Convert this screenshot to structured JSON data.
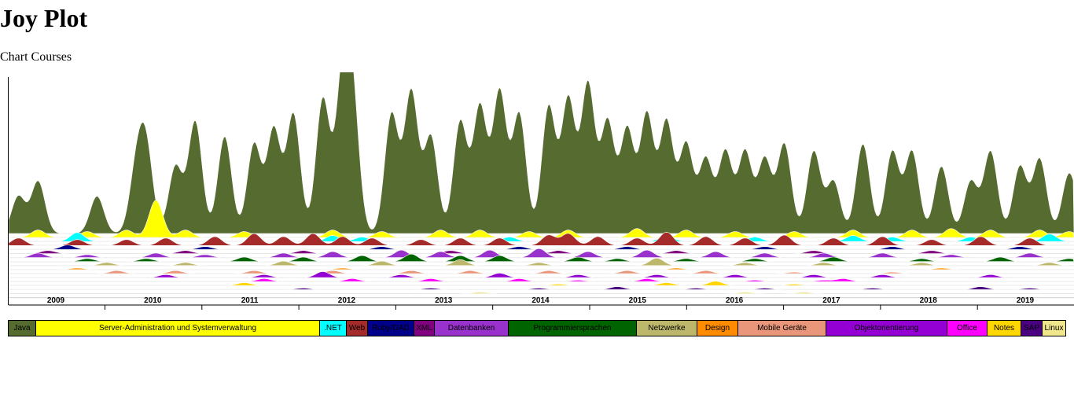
{
  "page": {
    "title": "Joy Plot",
    "subtitle": "Chart Courses"
  },
  "chart_data": {
    "type": "area",
    "subtype": "joy-plot (ridgeline)",
    "x_ticks": [
      "2009",
      "2010",
      "2011",
      "2012",
      "2013",
      "2014",
      "2015",
      "2016",
      "2017",
      "2018",
      "2019"
    ],
    "xlim": [
      "2008-07",
      "2019-12"
    ],
    "grid": true,
    "legend_placement": "bottom",
    "series": [
      {
        "name": "Java",
        "color": "#556b2f",
        "peaks": [
          [
            2008.7,
            0.25
          ],
          [
            2008.9,
            0.35
          ],
          [
            2009.5,
            0.25
          ],
          [
            2009.9,
            0.4
          ],
          [
            2010.0,
            0.55
          ],
          [
            2010.3,
            0.45
          ],
          [
            2010.5,
            0.75
          ],
          [
            2010.8,
            0.65
          ],
          [
            2011.1,
            0.6
          ],
          [
            2011.3,
            0.7
          ],
          [
            2011.5,
            0.8
          ],
          [
            2011.8,
            0.9
          ],
          [
            2012.0,
            0.95
          ],
          [
            2012.1,
            0.85
          ],
          [
            2012.5,
            0.8
          ],
          [
            2012.7,
            0.95
          ],
          [
            2012.9,
            0.65
          ],
          [
            2013.2,
            0.75
          ],
          [
            2013.4,
            0.85
          ],
          [
            2013.6,
            0.95
          ],
          [
            2013.8,
            0.8
          ],
          [
            2014.1,
            0.85
          ],
          [
            2014.3,
            0.9
          ],
          [
            2014.5,
            1.0
          ],
          [
            2014.7,
            0.75
          ],
          [
            2014.9,
            0.7
          ],
          [
            2015.1,
            0.8
          ],
          [
            2015.3,
            0.75
          ],
          [
            2015.5,
            0.6
          ],
          [
            2015.7,
            0.5
          ],
          [
            2015.9,
            0.55
          ],
          [
            2016.1,
            0.55
          ],
          [
            2016.3,
            0.5
          ],
          [
            2016.5,
            0.6
          ],
          [
            2016.8,
            0.55
          ],
          [
            2017.0,
            0.35
          ],
          [
            2017.3,
            0.6
          ],
          [
            2017.6,
            0.55
          ],
          [
            2017.8,
            0.55
          ],
          [
            2018.1,
            0.45
          ],
          [
            2018.4,
            0.35
          ],
          [
            2018.6,
            0.55
          ],
          [
            2018.9,
            0.45
          ],
          [
            2019.1,
            0.5
          ],
          [
            2019.4,
            0.4
          ],
          [
            2019.6,
            0.3
          ]
        ]
      },
      {
        "name": "Server-Administration und Systemverwaltung",
        "color": "#ffff00",
        "peaks": [
          [
            2008.9,
            0.05
          ],
          [
            2009.4,
            0.04
          ],
          [
            2009.8,
            0.05
          ],
          [
            2010.1,
            0.25
          ],
          [
            2010.4,
            0.05
          ],
          [
            2011.0,
            0.04
          ],
          [
            2011.9,
            0.05
          ],
          [
            2012.4,
            0.04
          ],
          [
            2013.0,
            0.05
          ],
          [
            2013.4,
            0.05
          ],
          [
            2013.9,
            0.04
          ],
          [
            2014.3,
            0.05
          ],
          [
            2015.0,
            0.06
          ],
          [
            2015.5,
            0.05
          ],
          [
            2016.0,
            0.04
          ],
          [
            2016.6,
            0.04
          ],
          [
            2017.2,
            0.05
          ],
          [
            2017.8,
            0.05
          ],
          [
            2018.2,
            0.06
          ],
          [
            2018.6,
            0.05
          ],
          [
            2019.1,
            0.05
          ],
          [
            2019.4,
            0.04
          ]
        ]
      },
      {
        "name": ".NET",
        "color": "#00ffff",
        "peaks": [
          [
            2009.3,
            0.06
          ],
          [
            2011.9,
            0.04
          ],
          [
            2012.2,
            0.03
          ],
          [
            2013.7,
            0.03
          ],
          [
            2015.3,
            0.04
          ],
          [
            2016.2,
            0.03
          ],
          [
            2017.2,
            0.04
          ],
          [
            2017.6,
            0.03
          ],
          [
            2018.4,
            0.03
          ],
          [
            2019.2,
            0.05
          ]
        ]
      },
      {
        "name": "Web",
        "color": "#a52a2a",
        "peaks": [
          [
            2008.7,
            0.05
          ],
          [
            2009.3,
            0.04
          ],
          [
            2009.8,
            0.04
          ],
          [
            2010.2,
            0.05
          ],
          [
            2010.7,
            0.06
          ],
          [
            2011.1,
            0.08
          ],
          [
            2011.4,
            0.06
          ],
          [
            2011.7,
            0.08
          ],
          [
            2012.0,
            0.06
          ],
          [
            2012.3,
            0.05
          ],
          [
            2012.8,
            0.04
          ],
          [
            2013.2,
            0.05
          ],
          [
            2013.6,
            0.05
          ],
          [
            2014.1,
            0.07
          ],
          [
            2014.3,
            0.08
          ],
          [
            2014.6,
            0.06
          ],
          [
            2015.0,
            0.05
          ],
          [
            2015.3,
            0.09
          ],
          [
            2015.7,
            0.06
          ],
          [
            2016.1,
            0.05
          ],
          [
            2016.5,
            0.07
          ],
          [
            2017.0,
            0.05
          ],
          [
            2017.5,
            0.06
          ],
          [
            2018.0,
            0.04
          ],
          [
            2018.5,
            0.06
          ],
          [
            2019.0,
            0.05
          ]
        ]
      },
      {
        "name": "Ruby/OAD",
        "color": "#00008b",
        "peaks": [
          [
            2009.2,
            0.03
          ],
          [
            2010.6,
            0.02
          ],
          [
            2012.4,
            0.02
          ],
          [
            2013.8,
            0.02
          ],
          [
            2014.9,
            0.02
          ],
          [
            2016.3,
            0.02
          ],
          [
            2017.6,
            0.02
          ],
          [
            2018.9,
            0.02
          ]
        ]
      },
      {
        "name": "XML",
        "color": "#800080",
        "peaks": [
          [
            2009.0,
            0.02
          ],
          [
            2010.4,
            0.02
          ],
          [
            2011.6,
            0.02
          ],
          [
            2013.1,
            0.02
          ],
          [
            2014.2,
            0.02
          ],
          [
            2015.4,
            0.02
          ],
          [
            2016.8,
            0.02
          ],
          [
            2018.0,
            0.02
          ]
        ]
      },
      {
        "name": "Datenbanken",
        "color": "#9932cc",
        "peaks": [
          [
            2008.9,
            0.03
          ],
          [
            2009.4,
            0.02
          ],
          [
            2010.1,
            0.03
          ],
          [
            2010.6,
            0.02
          ],
          [
            2011.4,
            0.03
          ],
          [
            2011.9,
            0.04
          ],
          [
            2012.6,
            0.05
          ],
          [
            2013.0,
            0.04
          ],
          [
            2013.5,
            0.05
          ],
          [
            2014.0,
            0.06
          ],
          [
            2014.5,
            0.04
          ],
          [
            2015.1,
            0.05
          ],
          [
            2015.8,
            0.04
          ],
          [
            2016.3,
            0.03
          ],
          [
            2016.9,
            0.03
          ],
          [
            2017.5,
            0.03
          ],
          [
            2018.2,
            0.02
          ],
          [
            2019.0,
            0.03
          ]
        ]
      },
      {
        "name": "Programmiersprachen",
        "color": "#006400",
        "peaks": [
          [
            2009.4,
            0.02
          ],
          [
            2010.0,
            0.02
          ],
          [
            2011.0,
            0.03
          ],
          [
            2011.6,
            0.03
          ],
          [
            2012.2,
            0.04
          ],
          [
            2012.7,
            0.05
          ],
          [
            2013.2,
            0.04
          ],
          [
            2013.6,
            0.04
          ],
          [
            2014.4,
            0.03
          ],
          [
            2014.8,
            0.02
          ],
          [
            2015.5,
            0.02
          ],
          [
            2016.2,
            0.02
          ],
          [
            2017.0,
            0.03
          ],
          [
            2017.9,
            0.02
          ],
          [
            2018.7,
            0.03
          ],
          [
            2019.4,
            0.02
          ]
        ]
      },
      {
        "name": "Netzwerke",
        "color": "#bdb76b",
        "peaks": [
          [
            2009.6,
            0.02
          ],
          [
            2010.4,
            0.02
          ],
          [
            2011.4,
            0.03
          ],
          [
            2012.4,
            0.03
          ],
          [
            2013.2,
            0.04
          ],
          [
            2014.0,
            0.02
          ],
          [
            2015.2,
            0.05
          ],
          [
            2016.1,
            0.02
          ],
          [
            2016.9,
            0.02
          ],
          [
            2017.9,
            0.02
          ],
          [
            2019.2,
            0.02
          ]
        ]
      },
      {
        "name": "Design",
        "color": "#ff8c00",
        "peaks": [
          [
            2009.3,
            0.01
          ],
          [
            2012.0,
            0.01
          ],
          [
            2015.4,
            0.01
          ],
          [
            2018.1,
            0.01
          ]
        ]
      },
      {
        "name": "Mobile Geräte",
        "color": "#e9967a",
        "peaks": [
          [
            2009.7,
            0.02
          ],
          [
            2010.3,
            0.02
          ],
          [
            2011.1,
            0.02
          ],
          [
            2011.9,
            0.02
          ],
          [
            2012.7,
            0.02
          ],
          [
            2013.3,
            0.02
          ],
          [
            2014.1,
            0.02
          ],
          [
            2014.9,
            0.02
          ],
          [
            2015.7,
            0.02
          ],
          [
            2016.6,
            0.01
          ],
          [
            2017.6,
            0.01
          ]
        ]
      },
      {
        "name": "Objektorientierung",
        "color": "#9400d3",
        "peaks": [
          [
            2010.2,
            0.02
          ],
          [
            2011.2,
            0.02
          ],
          [
            2011.8,
            0.04
          ],
          [
            2012.6,
            0.02
          ],
          [
            2013.6,
            0.03
          ],
          [
            2014.4,
            0.02
          ],
          [
            2015.2,
            0.02
          ],
          [
            2016.0,
            0.02
          ],
          [
            2016.8,
            0.02
          ],
          [
            2017.5,
            0.02
          ],
          [
            2018.6,
            0.02
          ]
        ]
      },
      {
        "name": "Office",
        "color": "#ff00ff",
        "peaks": [
          [
            2011.2,
            0.02
          ],
          [
            2012.1,
            0.02
          ],
          [
            2012.9,
            0.02
          ],
          [
            2013.8,
            0.02
          ],
          [
            2014.4,
            0.01
          ],
          [
            2015.1,
            0.02
          ],
          [
            2016.2,
            0.01
          ],
          [
            2016.9,
            0.01
          ],
          [
            2017.1,
            0.02
          ]
        ]
      },
      {
        "name": "Notes",
        "color": "#ffd700",
        "peaks": [
          [
            2011.0,
            0.02
          ],
          [
            2014.2,
            0.01
          ],
          [
            2015.3,
            0.02
          ],
          [
            2015.8,
            0.03
          ],
          [
            2016.6,
            0.01
          ]
        ]
      },
      {
        "name": "SAP",
        "color": "#4b0082",
        "peaks": [
          [
            2011.6,
            0.01
          ],
          [
            2012.9,
            0.01
          ],
          [
            2014.0,
            0.01
          ],
          [
            2014.8,
            0.02
          ],
          [
            2015.6,
            0.01
          ],
          [
            2016.3,
            0.01
          ],
          [
            2017.4,
            0.01
          ],
          [
            2018.5,
            0.02
          ],
          [
            2019.0,
            0.01
          ]
        ]
      },
      {
        "name": "Linux",
        "color": "#f0e68c",
        "peaks": [
          [
            2013.4,
            0.01
          ],
          [
            2016.1,
            0.01
          ],
          [
            2016.7,
            0.01
          ]
        ]
      }
    ]
  },
  "legend": {
    "items": [
      {
        "label": "Java",
        "color": "#556b2f"
      },
      {
        "label": "Server-Administration und Systemverwaltung",
        "color": "#ffff00"
      },
      {
        "label": ".NET",
        "color": "#00ffff"
      },
      {
        "label": "Web",
        "color": "#a52a2a"
      },
      {
        "label": "Ruby/OAD",
        "color": "#00008b"
      },
      {
        "label": "XML",
        "color": "#800080"
      },
      {
        "label": "Datenbanken",
        "color": "#9932cc"
      },
      {
        "label": "Programmiersprachen",
        "color": "#006400"
      },
      {
        "label": "Netzwerke",
        "color": "#bdb76b"
      },
      {
        "label": "Design",
        "color": "#ff8c00"
      },
      {
        "label": "Mobile Geräte",
        "color": "#e9967a"
      },
      {
        "label": "Objektorientierung",
        "color": "#9400d3"
      },
      {
        "label": "Office",
        "color": "#ff00ff"
      },
      {
        "label": "Notes",
        "color": "#ffd700"
      },
      {
        "label": "SAP",
        "color": "#4b0082"
      },
      {
        "label": "Linux",
        "color": "#f0e68c"
      }
    ]
  }
}
